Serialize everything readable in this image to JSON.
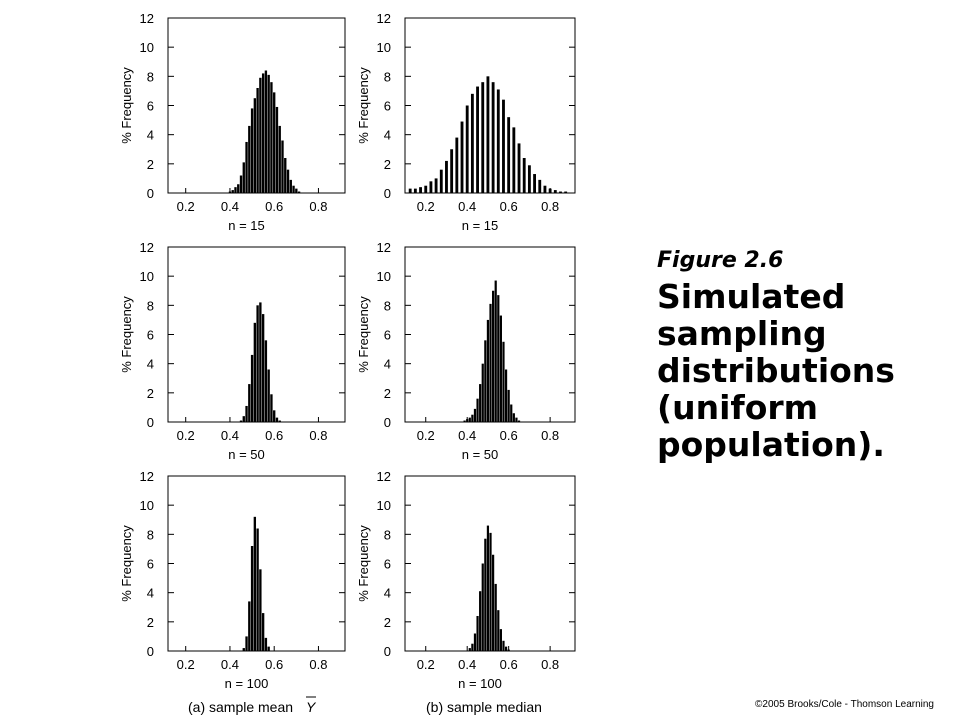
{
  "caption": {
    "label": "Figure 2.6",
    "title": "Simulated sampling distributions (uniform population)."
  },
  "copyright": "©2005 Brooks/Cole - Thomson Learning",
  "chart_data": [
    {
      "type": "bar",
      "panel": "a",
      "row": 0,
      "xlabel": "n = 15",
      "ylabel": "% Frequency",
      "xlim": [
        0.12,
        0.92
      ],
      "ylim": [
        0,
        12
      ],
      "bin_width": 0.0125,
      "xticks": [
        0.2,
        0.4,
        0.6,
        0.8
      ],
      "yticks": [
        0,
        2,
        4,
        6,
        8,
        10,
        12
      ],
      "x": [
        0.15,
        0.1625,
        0.175,
        0.1875,
        0.2,
        0.2125,
        0.225,
        0.2375,
        0.25,
        0.2625,
        0.275,
        0.2875,
        0.3,
        0.3125,
        0.325,
        0.3375,
        0.35,
        0.3625,
        0.375,
        0.3875,
        0.4,
        0.4125,
        0.425,
        0.4375,
        0.45,
        0.4625,
        0.475,
        0.4875,
        0.5,
        0.5125,
        0.525,
        0.5375,
        0.55,
        0.5625,
        0.575,
        0.5875,
        0.6,
        0.6125,
        0.625,
        0.6375,
        0.65,
        0.6625,
        0.675,
        0.6875,
        0.7,
        0.7125,
        0.725,
        0.7375,
        0.75,
        0.7625,
        0.775,
        0.7875,
        0.8,
        0.8125,
        0.825,
        0.8375,
        0.85,
        0.8625,
        0.875,
        0.8875
      ],
      "values": [
        0,
        0,
        0,
        0,
        0,
        0,
        0,
        0,
        0,
        0,
        0,
        0,
        0,
        0,
        0,
        0,
        0,
        0,
        0,
        0,
        0.1,
        0.2,
        0.4,
        0.6,
        1.2,
        2.1,
        3.5,
        4.6,
        5.8,
        6.5,
        7.2,
        7.9,
        8.2,
        8.4,
        8.1,
        7.6,
        6.9,
        5.9,
        4.6,
        3.6,
        2.4,
        1.6,
        0.9,
        0.5,
        0.3,
        0.1,
        0,
        0,
        0,
        0,
        0,
        0,
        0,
        0,
        0,
        0,
        0,
        0,
        0,
        0
      ]
    },
    {
      "type": "bar",
      "panel": "b",
      "row": 0,
      "xlabel": "n = 15",
      "ylabel": "% Frequency",
      "xlim": [
        0.1,
        0.92
      ],
      "ylim": [
        0,
        12
      ],
      "bin_width": 0.025,
      "xticks": [
        0.2,
        0.4,
        0.6,
        0.8
      ],
      "yticks": [
        0,
        2,
        4,
        6,
        8,
        10,
        12
      ],
      "x": [
        0.125,
        0.15,
        0.175,
        0.2,
        0.225,
        0.25,
        0.275,
        0.3,
        0.325,
        0.35,
        0.375,
        0.4,
        0.425,
        0.45,
        0.475,
        0.5,
        0.525,
        0.55,
        0.575,
        0.6,
        0.625,
        0.65,
        0.675,
        0.7,
        0.725,
        0.75,
        0.775,
        0.8,
        0.825,
        0.85,
        0.875,
        0.9
      ],
      "values": [
        0.3,
        0.3,
        0.4,
        0.5,
        0.8,
        1.0,
        1.6,
        2.2,
        3.0,
        3.8,
        4.9,
        6.0,
        6.8,
        7.3,
        7.6,
        8.0,
        7.6,
        7.1,
        6.4,
        5.2,
        4.5,
        3.4,
        2.4,
        1.9,
        1.3,
        0.9,
        0.5,
        0.3,
        0.2,
        0.1,
        0.1,
        0
      ]
    },
    {
      "type": "bar",
      "panel": "a",
      "row": 1,
      "xlabel": "n = 50",
      "ylabel": "% Frequency",
      "xlim": [
        0.12,
        0.92
      ],
      "ylim": [
        0,
        12
      ],
      "bin_width": 0.0125,
      "xticks": [
        0.2,
        0.4,
        0.6,
        0.8
      ],
      "yticks": [
        0,
        2,
        4,
        6,
        8,
        10,
        12
      ],
      "x": [
        0.15,
        0.1625,
        0.175,
        0.1875,
        0.2,
        0.2125,
        0.225,
        0.2375,
        0.25,
        0.2625,
        0.275,
        0.2875,
        0.3,
        0.3125,
        0.325,
        0.3375,
        0.35,
        0.3625,
        0.375,
        0.3875,
        0.4,
        0.4125,
        0.425,
        0.4375,
        0.45,
        0.4625,
        0.475,
        0.4875,
        0.5,
        0.5125,
        0.525,
        0.5375,
        0.55,
        0.5625,
        0.575,
        0.5875,
        0.6,
        0.6125,
        0.625,
        0.6375,
        0.65,
        0.6625,
        0.675,
        0.6875,
        0.7,
        0.7125,
        0.725,
        0.7375,
        0.75,
        0.7625,
        0.775,
        0.7875,
        0.8,
        0.8125,
        0.825,
        0.8375,
        0.85,
        0.8625,
        0.875,
        0.8875
      ],
      "values": [
        0,
        0,
        0,
        0,
        0,
        0,
        0,
        0,
        0,
        0,
        0,
        0,
        0,
        0,
        0,
        0,
        0,
        0,
        0,
        0,
        0,
        0,
        0,
        0,
        0.1,
        0.4,
        1.1,
        2.6,
        4.6,
        6.8,
        8.0,
        8.2,
        7.4,
        5.6,
        3.6,
        1.9,
        0.8,
        0.3,
        0.1,
        0,
        0,
        0,
        0,
        0,
        0,
        0,
        0,
        0,
        0,
        0,
        0,
        0,
        0,
        0,
        0,
        0,
        0,
        0,
        0,
        0
      ]
    },
    {
      "type": "bar",
      "panel": "b",
      "row": 1,
      "xlabel": "n = 50",
      "ylabel": "% Frequency",
      "xlim": [
        0.1,
        0.92
      ],
      "ylim": [
        0,
        12
      ],
      "bin_width": 0.0125,
      "xticks": [
        0.2,
        0.4,
        0.6,
        0.8
      ],
      "yticks": [
        0,
        2,
        4,
        6,
        8,
        10,
        12
      ],
      "x": [
        0.1125,
        0.125,
        0.1375,
        0.15,
        0.1625,
        0.175,
        0.1875,
        0.2,
        0.2125,
        0.225,
        0.2375,
        0.25,
        0.2625,
        0.275,
        0.2875,
        0.3,
        0.3125,
        0.325,
        0.3375,
        0.35,
        0.3625,
        0.375,
        0.3875,
        0.4,
        0.4125,
        0.425,
        0.4375,
        0.45,
        0.4625,
        0.475,
        0.4875,
        0.5,
        0.5125,
        0.525,
        0.5375,
        0.55,
        0.5625,
        0.575,
        0.5875,
        0.6,
        0.6125,
        0.625,
        0.6375,
        0.65,
        0.6625,
        0.675,
        0.6875,
        0.7,
        0.7125,
        0.725,
        0.7375,
        0.75,
        0.7625,
        0.775,
        0.7875,
        0.8,
        0.8125,
        0.825,
        0.8375,
        0.85,
        0.8625,
        0.875,
        0.8875,
        0.9
      ],
      "values": [
        0,
        0,
        0,
        0,
        0,
        0,
        0,
        0,
        0,
        0,
        0,
        0,
        0,
        0,
        0,
        0,
        0,
        0,
        0,
        0,
        0,
        0,
        0.1,
        0.2,
        0.3,
        0.5,
        0.9,
        1.6,
        2.6,
        4.0,
        5.6,
        7.0,
        8.1,
        9.0,
        9.7,
        8.7,
        7.3,
        5.5,
        3.6,
        2.2,
        1.2,
        0.6,
        0.3,
        0.1,
        0,
        0,
        0,
        0,
        0,
        0,
        0,
        0,
        0,
        0,
        0,
        0,
        0,
        0,
        0,
        0,
        0,
        0,
        0,
        0
      ]
    },
    {
      "type": "bar",
      "panel": "a",
      "row": 2,
      "xlabel": "n = 100",
      "ylabel": "% Frequency",
      "xlim": [
        0.12,
        0.92
      ],
      "ylim": [
        0,
        12
      ],
      "bin_width": 0.0125,
      "xticks": [
        0.2,
        0.4,
        0.6,
        0.8
      ],
      "yticks": [
        0,
        2,
        4,
        6,
        8,
        10,
        12
      ],
      "x": [
        0.15,
        0.1625,
        0.175,
        0.1875,
        0.2,
        0.2125,
        0.225,
        0.2375,
        0.25,
        0.2625,
        0.275,
        0.2875,
        0.3,
        0.3125,
        0.325,
        0.3375,
        0.35,
        0.3625,
        0.375,
        0.3875,
        0.4,
        0.4125,
        0.425,
        0.4375,
        0.45,
        0.4625,
        0.475,
        0.4875,
        0.5,
        0.5125,
        0.525,
        0.5375,
        0.55,
        0.5625,
        0.575,
        0.5875,
        0.6,
        0.6125,
        0.625,
        0.6375,
        0.65,
        0.6625,
        0.675,
        0.6875,
        0.7,
        0.7125,
        0.725,
        0.7375,
        0.75,
        0.7625,
        0.775,
        0.7875,
        0.8,
        0.8125,
        0.825,
        0.8375,
        0.85,
        0.8625,
        0.875,
        0.8875
      ],
      "values": [
        0,
        0,
        0,
        0,
        0,
        0,
        0,
        0,
        0,
        0,
        0,
        0,
        0,
        0,
        0,
        0,
        0,
        0,
        0,
        0,
        0,
        0,
        0,
        0,
        0,
        0.2,
        1.0,
        3.4,
        7.2,
        9.2,
        8.4,
        5.6,
        2.6,
        0.9,
        0.3,
        0,
        0,
        0,
        0,
        0,
        0,
        0,
        0,
        0,
        0,
        0,
        0,
        0,
        0,
        0,
        0,
        0,
        0,
        0,
        0,
        0,
        0,
        0,
        0,
        0
      ]
    },
    {
      "type": "bar",
      "panel": "b",
      "row": 2,
      "xlabel": "n = 100",
      "ylabel": "% Frequency",
      "xlim": [
        0.1,
        0.92
      ],
      "ylim": [
        0,
        12
      ],
      "bin_width": 0.0125,
      "xticks": [
        0.2,
        0.4,
        0.6,
        0.8
      ],
      "yticks": [
        0,
        2,
        4,
        6,
        8,
        10,
        12
      ],
      "x": [
        0.1125,
        0.125,
        0.1375,
        0.15,
        0.1625,
        0.175,
        0.1875,
        0.2,
        0.2125,
        0.225,
        0.2375,
        0.25,
        0.2625,
        0.275,
        0.2875,
        0.3,
        0.3125,
        0.325,
        0.3375,
        0.35,
        0.3625,
        0.375,
        0.3875,
        0.4,
        0.4125,
        0.425,
        0.4375,
        0.45,
        0.4625,
        0.475,
        0.4875,
        0.5,
        0.5125,
        0.525,
        0.5375,
        0.55,
        0.5625,
        0.575,
        0.5875,
        0.6,
        0.6125,
        0.625,
        0.6375,
        0.65,
        0.6625,
        0.675,
        0.6875,
        0.7,
        0.7125,
        0.725,
        0.7375,
        0.75,
        0.7625,
        0.775,
        0.7875,
        0.8,
        0.8125,
        0.825,
        0.8375,
        0.85,
        0.8625,
        0.875,
        0.8875,
        0.9
      ],
      "values": [
        0,
        0,
        0,
        0,
        0,
        0,
        0,
        0,
        0,
        0,
        0,
        0,
        0,
        0,
        0,
        0,
        0,
        0,
        0,
        0,
        0,
        0,
        0,
        0,
        0.2,
        0.5,
        1.2,
        2.4,
        4.1,
        6.0,
        7.7,
        8.6,
        8.1,
        6.6,
        4.6,
        2.8,
        1.5,
        0.7,
        0.3,
        0.1,
        0,
        0,
        0,
        0,
        0,
        0,
        0,
        0,
        0,
        0,
        0,
        0,
        0,
        0,
        0,
        0,
        0,
        0,
        0,
        0,
        0,
        0,
        0,
        0
      ]
    }
  ],
  "bottom_labels": {
    "left": "(a) sample mean",
    "left_symbol": "Y",
    "right": "(b) sample median"
  }
}
